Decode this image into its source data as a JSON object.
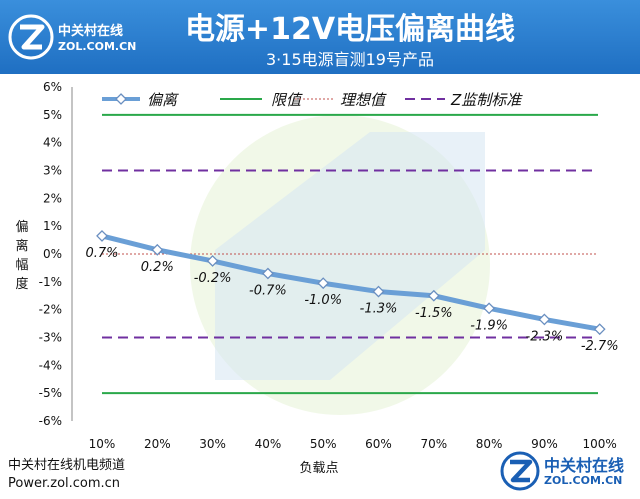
{
  "header": {
    "logo_cn": "中关村在线",
    "logo_en": "ZOL.COM.CN",
    "title": "电源+12V电压偏离曲线",
    "subtitle": "3·15电源盲测19号产品"
  },
  "footer": {
    "left_cn": "中关村在线机电频道",
    "left_url": "Power.zol.com.cn",
    "logo_cn": "中关村在线",
    "logo_en": "ZOL.COM.CN"
  },
  "colors": {
    "header": "#2a7fd0",
    "series": "#6a9fd6",
    "limit": "#2aa84a",
    "ideal": "#c0504d",
    "zstd": "#7030a0"
  },
  "chart_data": {
    "type": "line",
    "title": "电源+12V电压偏离曲线",
    "subtitle": "3·15电源盲测19号产品",
    "xlabel": "负载点",
    "ylabel": "偏离幅度",
    "categories": [
      "10%",
      "20%",
      "30%",
      "40%",
      "50%",
      "60%",
      "70%",
      "80%",
      "90%",
      "100%"
    ],
    "ylim": [
      -6,
      6
    ],
    "yticks": [
      "6%",
      "5%",
      "4%",
      "3%",
      "2%",
      "1%",
      "0%",
      "-1%",
      "-2%",
      "-3%",
      "-4%",
      "-5%",
      "-6%"
    ],
    "legend_position": "top",
    "series": [
      {
        "name": "偏离",
        "values": [
          0.7,
          0.2,
          -0.2,
          -0.7,
          -1.0,
          -1.3,
          -1.5,
          -1.9,
          -2.3,
          -2.7
        ],
        "plot_values": [
          0.65,
          0.15,
          -0.25,
          -0.7,
          -1.05,
          -1.35,
          -1.5,
          -1.95,
          -2.35,
          -2.7
        ],
        "labels": [
          "0.7%",
          "0.2%",
          "-0.2%",
          "-0.7%",
          "-1.0%",
          "-1.3%",
          "-1.5%",
          "-1.9%",
          "-2.3%",
          "-2.7%"
        ]
      }
    ],
    "reference_lines": [
      {
        "name": "限值",
        "values": [
          5,
          -5
        ]
      },
      {
        "name": "理想值",
        "values": [
          0
        ]
      },
      {
        "name": "Z监制标准",
        "values": [
          3,
          -3
        ]
      }
    ]
  }
}
